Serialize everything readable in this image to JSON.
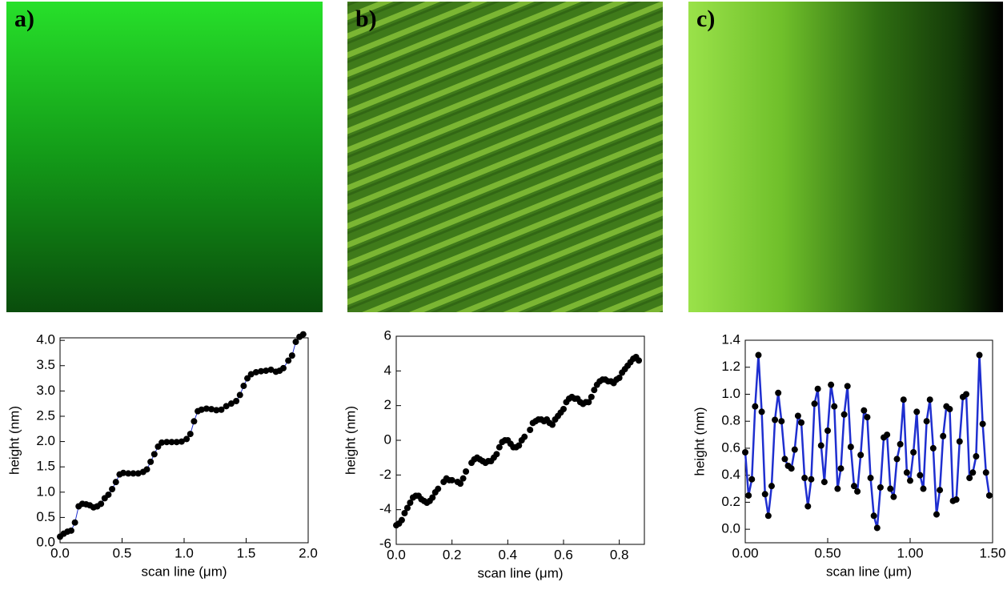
{
  "panels": [
    {
      "label": "a)"
    },
    {
      "label": "b)"
    },
    {
      "label": "c)"
    }
  ],
  "chart_data": [
    {
      "type": "line",
      "xlabel": "scan line (μm)",
      "ylabel": "height (nm)",
      "marker_color": "#000000",
      "line_color": "#1f2fd0",
      "xlim": [
        0,
        2.0
      ],
      "ylim": [
        0,
        4.05
      ],
      "xticks": [
        {
          "value": 0,
          "label": "0.0"
        },
        0.5,
        {
          "value": 1,
          "label": "1.0"
        },
        1.5,
        {
          "value": 2,
          "label": "2.0"
        }
      ],
      "yticks": [
        {
          "value": 0,
          "label": "0.0"
        },
        0.5,
        {
          "value": 1,
          "label": "1.0"
        },
        1.5,
        {
          "value": 2,
          "label": "2.0"
        },
        2.5,
        {
          "value": 3,
          "label": "3.0"
        },
        3.5,
        {
          "value": 4,
          "label": "4.0"
        }
      ],
      "x": [
        0,
        0.03,
        0.06,
        0.09,
        0.12,
        0.15,
        0.18,
        0.21,
        0.24,
        0.27,
        0.3,
        0.33,
        0.36,
        0.39,
        0.42,
        0.45,
        0.48,
        0.51,
        0.55,
        0.59,
        0.63,
        0.67,
        0.7,
        0.73,
        0.76,
        0.79,
        0.82,
        0.86,
        0.9,
        0.94,
        0.98,
        1.02,
        1.05,
        1.08,
        1.11,
        1.14,
        1.18,
        1.22,
        1.26,
        1.3,
        1.34,
        1.38,
        1.42,
        1.45,
        1.48,
        1.51,
        1.54,
        1.58,
        1.62,
        1.66,
        1.7,
        1.74,
        1.77,
        1.8,
        1.84,
        1.87,
        1.9,
        1.93,
        1.96
      ],
      "values": [
        0.12,
        0.18,
        0.22,
        0.24,
        0.4,
        0.72,
        0.77,
        0.76,
        0.74,
        0.7,
        0.72,
        0.77,
        0.88,
        0.95,
        1.06,
        1.2,
        1.35,
        1.38,
        1.37,
        1.37,
        1.37,
        1.4,
        1.45,
        1.6,
        1.75,
        1.9,
        1.98,
        1.99,
        1.99,
        1.99,
        2.0,
        2.05,
        2.15,
        2.4,
        2.6,
        2.63,
        2.65,
        2.64,
        2.62,
        2.63,
        2.7,
        2.75,
        2.8,
        2.92,
        3.1,
        3.25,
        3.33,
        3.37,
        3.39,
        3.4,
        3.42,
        3.38,
        3.4,
        3.45,
        3.6,
        3.7,
        3.97,
        4.07,
        4.12
      ]
    },
    {
      "type": "scatter",
      "xlabel": "scan line (μm)",
      "ylabel": "height (nm)",
      "marker_color": "#000000",
      "xlim": [
        0,
        0.89
      ],
      "ylim": [
        -6,
        6
      ],
      "xticks": [
        {
          "value": 0,
          "label": "0.0"
        },
        0.2,
        0.4,
        0.6,
        0.8
      ],
      "yticks": [
        -6,
        -4,
        -2,
        0,
        2,
        4,
        6
      ],
      "x": [
        0,
        0.01,
        0.02,
        0.03,
        0.04,
        0.05,
        0.06,
        0.07,
        0.08,
        0.09,
        0.1,
        0.11,
        0.12,
        0.13,
        0.14,
        0.15,
        0.17,
        0.18,
        0.19,
        0.2,
        0.22,
        0.23,
        0.24,
        0.25,
        0.27,
        0.28,
        0.29,
        0.3,
        0.31,
        0.32,
        0.33,
        0.34,
        0.35,
        0.36,
        0.37,
        0.38,
        0.39,
        0.4,
        0.41,
        0.42,
        0.43,
        0.44,
        0.45,
        0.46,
        0.48,
        0.49,
        0.5,
        0.51,
        0.52,
        0.53,
        0.54,
        0.55,
        0.56,
        0.57,
        0.58,
        0.59,
        0.6,
        0.61,
        0.62,
        0.63,
        0.64,
        0.65,
        0.66,
        0.67,
        0.68,
        0.69,
        0.7,
        0.71,
        0.72,
        0.73,
        0.74,
        0.75,
        0.76,
        0.77,
        0.78,
        0.79,
        0.8,
        0.81,
        0.82,
        0.83,
        0.84,
        0.85,
        0.86,
        0.87
      ],
      "values": [
        -4.9,
        -4.8,
        -4.6,
        -4.2,
        -3.9,
        -3.6,
        -3.3,
        -3.2,
        -3.2,
        -3.4,
        -3.5,
        -3.6,
        -3.5,
        -3.3,
        -3.0,
        -2.8,
        -2.4,
        -2.2,
        -2.3,
        -2.3,
        -2.4,
        -2.5,
        -2.2,
        -1.8,
        -1.3,
        -1.1,
        -1.0,
        -1.1,
        -1.2,
        -1.3,
        -1.2,
        -1.2,
        -1.0,
        -0.8,
        -0.4,
        -0.1,
        0,
        0,
        -0.2,
        -0.4,
        -0.4,
        -0.3,
        0,
        0.2,
        0.6,
        1.0,
        1.1,
        1.2,
        1.2,
        1.1,
        1.2,
        1.0,
        0.9,
        1.2,
        1.4,
        1.6,
        1.8,
        2.2,
        2.4,
        2.5,
        2.4,
        2.4,
        2.2,
        2.1,
        2.2,
        2.2,
        2.5,
        2.9,
        3.2,
        3.4,
        3.5,
        3.5,
        3.4,
        3.4,
        3.3,
        3.5,
        3.6,
        3.9,
        4.1,
        4.3,
        4.5,
        4.7,
        4.8,
        4.6
      ]
    },
    {
      "type": "line",
      "xlabel": "scan line (μm)",
      "ylabel": "height (nm)",
      "marker_color": "#000000",
      "line_color": "#1f2fd0",
      "xlim": [
        0,
        1.5
      ],
      "ylim": [
        -0.1,
        1.4
      ],
      "xticks": [
        {
          "value": 0,
          "label": "0.00"
        },
        {
          "value": 0.5,
          "label": "0.50"
        },
        {
          "value": 1,
          "label": "1.00"
        },
        {
          "value": 1.5,
          "label": "1.50"
        }
      ],
      "yticks": [
        {
          "value": 0,
          "label": "0.0"
        },
        0.2,
        0.4,
        0.6,
        0.8,
        {
          "value": 1,
          "label": "1.0"
        },
        1.2,
        1.4
      ],
      "x": [
        0,
        0.02,
        0.04,
        0.06,
        0.08,
        0.1,
        0.12,
        0.14,
        0.16,
        0.18,
        0.2,
        0.22,
        0.24,
        0.26,
        0.28,
        0.3,
        0.32,
        0.34,
        0.36,
        0.38,
        0.4,
        0.42,
        0.44,
        0.46,
        0.48,
        0.5,
        0.52,
        0.54,
        0.56,
        0.58,
        0.6,
        0.62,
        0.64,
        0.66,
        0.68,
        0.7,
        0.72,
        0.74,
        0.76,
        0.78,
        0.8,
        0.82,
        0.84,
        0.86,
        0.88,
        0.9,
        0.92,
        0.94,
        0.96,
        0.98,
        1.0,
        1.02,
        1.04,
        1.06,
        1.08,
        1.1,
        1.12,
        1.14,
        1.16,
        1.18,
        1.2,
        1.22,
        1.24,
        1.26,
        1.28,
        1.3,
        1.32,
        1.34,
        1.36,
        1.38,
        1.4,
        1.42,
        1.44,
        1.46,
        1.48
      ],
      "values": [
        0.57,
        0.25,
        0.37,
        0.91,
        1.29,
        0.87,
        0.26,
        0.1,
        0.32,
        0.81,
        1.01,
        0.8,
        0.52,
        0.47,
        0.45,
        0.59,
        0.84,
        0.79,
        0.38,
        0.17,
        0.37,
        0.93,
        1.04,
        0.62,
        0.35,
        0.73,
        1.07,
        0.91,
        0.3,
        0.45,
        0.85,
        1.06,
        0.61,
        0.32,
        0.28,
        0.55,
        0.88,
        0.83,
        0.38,
        0.1,
        0.01,
        0.31,
        0.68,
        0.7,
        0.3,
        0.24,
        0.52,
        0.63,
        0.96,
        0.42,
        0.36,
        0.57,
        0.87,
        0.4,
        0.3,
        0.8,
        0.96,
        0.6,
        0.11,
        0.29,
        0.69,
        0.91,
        0.89,
        0.21,
        0.22,
        0.65,
        0.98,
        1.0,
        0.38,
        0.42,
        0.54,
        1.29,
        0.78,
        0.42,
        0.25
      ]
    }
  ]
}
